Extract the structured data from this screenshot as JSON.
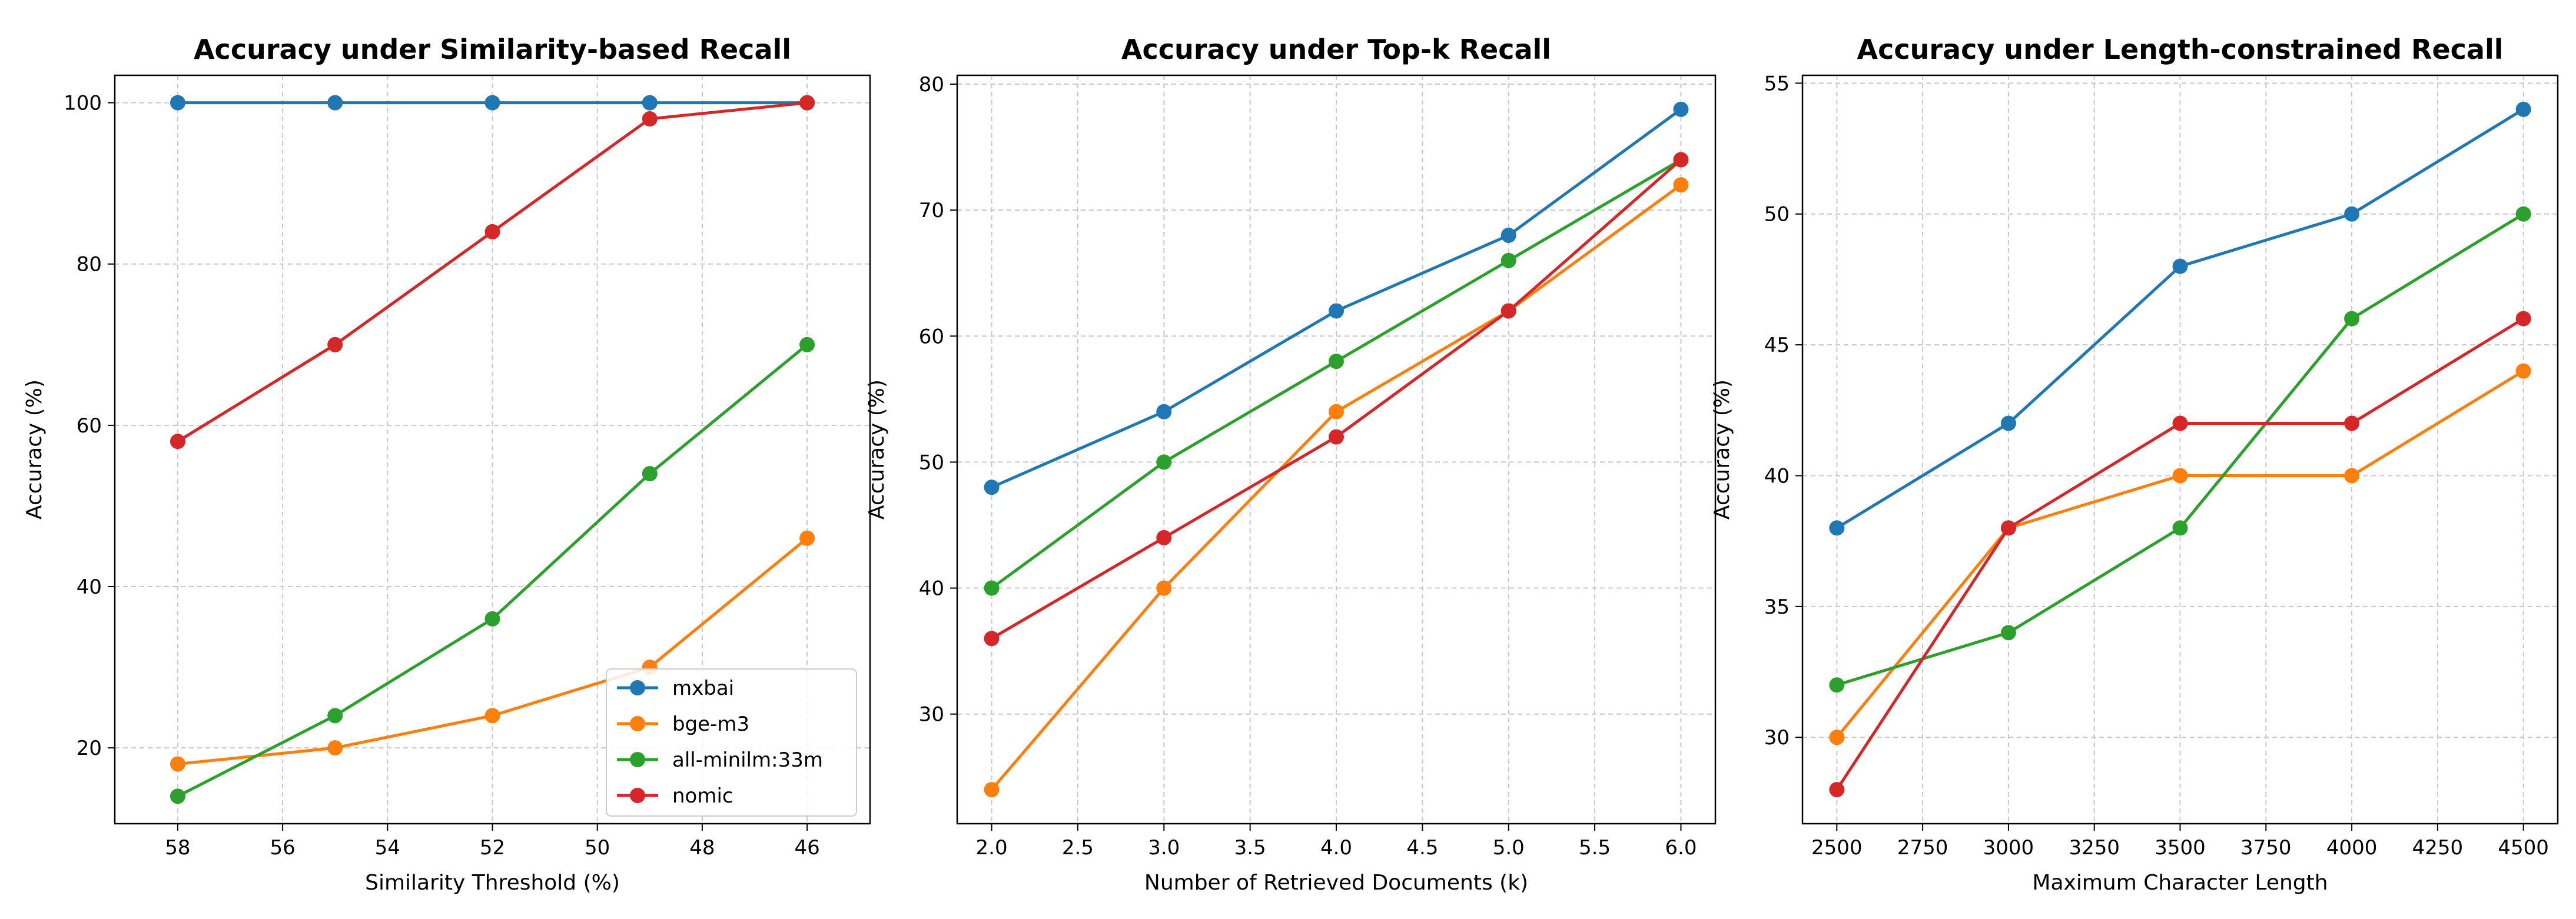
{
  "chart_data": [
    {
      "type": "line",
      "title": "Accuracy under Similarity-based Recall",
      "xlabel": "Similarity Threshold (%)",
      "ylabel": "Accuracy (%)",
      "x": [
        58,
        55,
        52,
        49,
        46
      ],
      "xlim": [
        59.2,
        44.8
      ],
      "ylim": [
        10.6,
        103.4
      ],
      "xticks": [
        58,
        56,
        54,
        52,
        50,
        48,
        46
      ],
      "yticks": [
        20,
        40,
        60,
        80,
        100
      ],
      "grid": true,
      "legend": "lower-right",
      "series": [
        {
          "name": "mxbai",
          "color": "#1f77b4",
          "values": [
            100,
            100,
            100,
            100,
            100
          ]
        },
        {
          "name": "bge-m3",
          "color": "#ff7f0e",
          "values": [
            18,
            20,
            24,
            30,
            46
          ]
        },
        {
          "name": "all-minilm:33m",
          "color": "#2ca02c",
          "values": [
            14,
            24,
            36,
            54,
            70
          ]
        },
        {
          "name": "nomic",
          "color": "#d62728",
          "values": [
            58,
            70,
            84,
            98,
            100
          ]
        }
      ]
    },
    {
      "type": "line",
      "title": "Accuracy under Top-k Recall",
      "xlabel": "Number of Retrieved Documents (k)",
      "ylabel": "Accuracy (%)",
      "x": [
        2.0,
        3.0,
        4.0,
        5.0,
        6.0
      ],
      "xlim": [
        1.8,
        6.2
      ],
      "ylim": [
        21.3,
        80.7
      ],
      "xticks": [
        "2.0",
        "2.5",
        "3.0",
        "3.5",
        "4.0",
        "4.5",
        "5.0",
        "5.5",
        "6.0"
      ],
      "yticks": [
        30,
        40,
        50,
        60,
        70,
        80
      ],
      "grid": true,
      "series": [
        {
          "name": "mxbai",
          "color": "#1f77b4",
          "values": [
            48,
            54,
            62,
            68,
            78
          ]
        },
        {
          "name": "bge-m3",
          "color": "#ff7f0e",
          "values": [
            24,
            40,
            54,
            62,
            72
          ]
        },
        {
          "name": "all-minilm:33m",
          "color": "#2ca02c",
          "values": [
            40,
            50,
            58,
            66,
            74
          ]
        },
        {
          "name": "nomic",
          "color": "#d62728",
          "values": [
            36,
            44,
            52,
            62,
            74
          ]
        }
      ]
    },
    {
      "type": "line",
      "title": "Accuracy under Length-constrained Recall",
      "xlabel": "Maximum Character Length",
      "ylabel": "Accuracy (%)",
      "x": [
        2500,
        3000,
        3500,
        4000,
        4500
      ],
      "xlim": [
        2400,
        4600
      ],
      "ylim": [
        26.7,
        55.3
      ],
      "xticks": [
        2500,
        2750,
        3000,
        3250,
        3500,
        3750,
        4000,
        4250,
        4500
      ],
      "yticks": [
        30,
        35,
        40,
        45,
        50,
        55
      ],
      "grid": true,
      "series": [
        {
          "name": "mxbai",
          "color": "#1f77b4",
          "values": [
            38,
            42,
            48,
            50,
            54
          ]
        },
        {
          "name": "bge-m3",
          "color": "#ff7f0e",
          "values": [
            30,
            38,
            40,
            40,
            44
          ]
        },
        {
          "name": "all-minilm:33m",
          "color": "#2ca02c",
          "values": [
            32,
            34,
            38,
            46,
            50
          ]
        },
        {
          "name": "nomic",
          "color": "#d62728",
          "values": [
            28,
            38,
            42,
            42,
            46
          ]
        }
      ]
    }
  ]
}
